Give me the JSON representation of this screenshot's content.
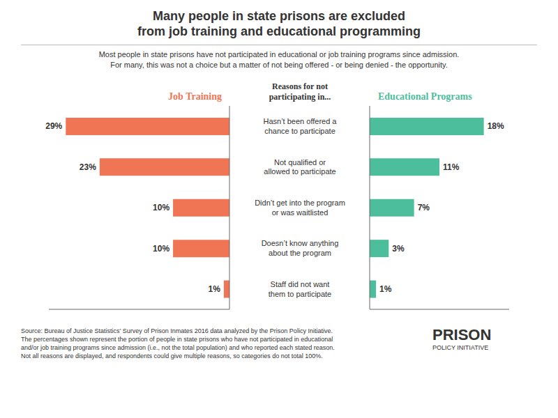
{
  "chart_data": {
    "type": "bar",
    "orientation": "horizontal",
    "title": "Many people in state prisons are excluded\nfrom job training and educational programming",
    "subtitle": "Most people in state prisons have not participated in educational or job training programs since admission.\nFor many, this was not a choice but a matter of not being offered - or being denied - the opportunity.",
    "categories": [
      "Hasn’t been offered a\nchance to participate",
      "Not qualified or\nallowed to participate",
      "Didn’t get into the program\nor was waitlisted",
      "Doesn’t know anything\nabout the program",
      "Staff did not want\nthem to participate"
    ],
    "series": [
      {
        "name": "Job Training",
        "color": "#f07555",
        "values": [
          29,
          23,
          10,
          10,
          1
        ],
        "value_labels": [
          "29%",
          "23%",
          "10%",
          "10%",
          "1%"
        ]
      },
      {
        "name": "Educational Programs",
        "color": "#4dbe9b",
        "axis": "x2",
        "values": [
          18,
          11,
          7,
          3,
          1
        ],
        "value_labels": [
          "18%",
          "11%",
          "7%",
          "3%",
          "1%"
        ]
      }
    ],
    "xlim": [
      0,
      32
    ],
    "x2lim": [
      0,
      22
    ],
    "data_labels": true,
    "tick_labels": "y",
    "grid": false,
    "annotations": [
      "Reasons for not\nparticipating in...",
      "Source: Bureau of Justice Statistics’ Survey of Prison Inmates 2016 data analyzed by the Prison Policy Initiative.",
      "The percentages shown represent the portion of people in state prisons who have not participated in educational",
      "and/or job training programs since admission (i.e., not the total population) and who reported each stated reason.",
      "Not all reasons are displayed, and respondents could give multiple reasons, so categories do not total 100%.",
      "PRISON",
      "POLICY INITIATIVE"
    ]
  }
}
